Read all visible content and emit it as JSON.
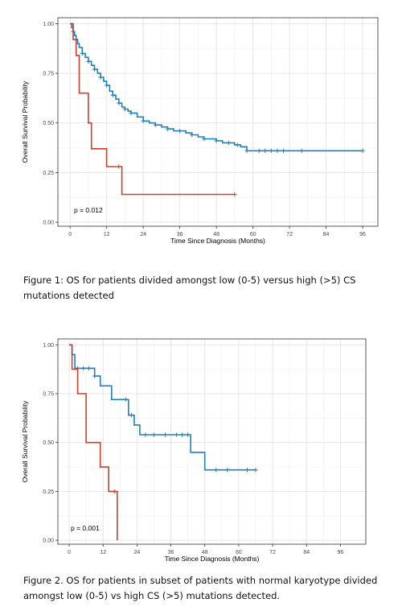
{
  "chart_data": [
    {
      "type": "line",
      "step": true,
      "caption": "Figure 1: OS for patients divided amongst low (0-5) versus high (>5) CS mutations detected",
      "xlabel": "Time Since Diagnosis (Months)",
      "ylabel": "Overall Survival Probability",
      "xticks": [
        0,
        12,
        24,
        36,
        48,
        60,
        72,
        84,
        96
      ],
      "yticks": [
        "0.00",
        "0.25",
        "0.50",
        "0.75",
        "1.00"
      ],
      "xlim": [
        -4,
        101
      ],
      "ylim": [
        -0.02,
        1.03
      ],
      "grid": true,
      "annotation": "p = 0.012",
      "series": [
        {
          "color": "#1f7fc1",
          "x": [
            0,
            0.5,
            1,
            1.5,
            2,
            2.5,
            3,
            4,
            5,
            6,
            7,
            8,
            9,
            10,
            11,
            12,
            13,
            14,
            15,
            16,
            17,
            18,
            19,
            20,
            22,
            24,
            26,
            28,
            30,
            32,
            34,
            36,
            38,
            40,
            42,
            44,
            46,
            48,
            50,
            52,
            54,
            56,
            58,
            60,
            64,
            68,
            72,
            76,
            80,
            84,
            88,
            92,
            96
          ],
          "y": [
            1.0,
            0.98,
            0.96,
            0.94,
            0.92,
            0.9,
            0.88,
            0.85,
            0.83,
            0.81,
            0.79,
            0.77,
            0.75,
            0.73,
            0.71,
            0.69,
            0.66,
            0.64,
            0.62,
            0.6,
            0.58,
            0.57,
            0.56,
            0.55,
            0.53,
            0.51,
            0.5,
            0.49,
            0.48,
            0.47,
            0.46,
            0.46,
            0.45,
            0.44,
            0.43,
            0.42,
            0.42,
            0.41,
            0.4,
            0.4,
            0.39,
            0.38,
            0.36,
            0.36,
            0.36,
            0.36,
            0.36,
            0.36,
            0.36,
            0.36,
            0.36,
            0.36,
            0.36
          ],
          "censor_x": [
            1,
            2,
            4,
            6,
            8,
            10,
            12,
            14,
            16,
            18,
            20,
            24,
            28,
            32,
            36,
            40,
            44,
            48,
            52,
            55,
            58,
            62,
            64,
            66,
            68,
            70,
            76,
            96
          ]
        },
        {
          "color": "#c8412a",
          "x": [
            0,
            1,
            2,
            3,
            6,
            7,
            12,
            17,
            54
          ],
          "y": [
            1.0,
            0.92,
            0.84,
            0.65,
            0.5,
            0.37,
            0.28,
            0.14,
            0.14
          ],
          "censor_x": [
            16,
            54
          ]
        }
      ]
    },
    {
      "type": "line",
      "step": true,
      "caption": "Figure 2. OS for patients in subset of patients with normal karyotype divided amongst low (0-5) vs high CS (>5) mutations detected.",
      "xlabel": "Time Since Diagnosis (Months)",
      "ylabel": "Overall Survival Probability",
      "xticks": [
        0,
        12,
        24,
        36,
        48,
        60,
        72,
        84,
        96
      ],
      "yticks": [
        "0.00",
        "0.25",
        "0.50",
        "0.75",
        "1.00"
      ],
      "xlim": [
        -4,
        105
      ],
      "ylim": [
        -0.02,
        1.03
      ],
      "grid": true,
      "annotation": "p = 0.001",
      "series": [
        {
          "color": "#1f7fc1",
          "x": [
            0,
            1,
            2,
            9,
            11,
            15,
            21,
            23,
            25,
            43,
            48,
            66
          ],
          "y": [
            1.0,
            0.95,
            0.88,
            0.84,
            0.79,
            0.72,
            0.64,
            0.59,
            0.54,
            0.45,
            0.36,
            0.36
          ],
          "censor_x": [
            3,
            5,
            7,
            9,
            20,
            22,
            27,
            30,
            34,
            38,
            40,
            42,
            52,
            56,
            63,
            66
          ]
        },
        {
          "color": "#c8412a",
          "x": [
            0,
            1,
            3,
            6,
            11,
            14,
            17
          ],
          "y": [
            1.0,
            0.875,
            0.75,
            0.5,
            0.375,
            0.25,
            0.0
          ],
          "censor_x": [
            16
          ]
        }
      ]
    }
  ]
}
